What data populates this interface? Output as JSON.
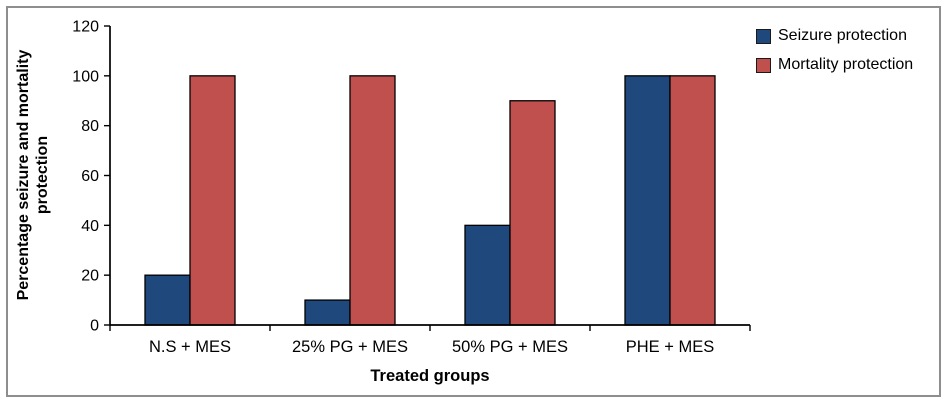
{
  "figure": {
    "background_color": "#FFFFFF",
    "border_color": "#8E8E8E"
  },
  "chart_data": {
    "type": "bar",
    "title": "",
    "xlabel": "Treated groups",
    "ylabel": "Percentage seizure and mortality protection",
    "ylabel_lines": [
      "Percentage seizure and mortality",
      "protection"
    ],
    "categories": [
      "N.S + MES",
      "25% PG + MES",
      "50% PG + MES",
      "PHE + MES"
    ],
    "series": [
      {
        "name": "Seizure protection",
        "color": "#1F497D",
        "values": [
          20,
          10,
          40,
          100
        ]
      },
      {
        "name": "Mortality protection",
        "color": "#C0504D",
        "values": [
          100,
          100,
          90,
          100
        ]
      }
    ],
    "ylim": [
      0,
      120
    ],
    "yticks": [
      0,
      20,
      40,
      60,
      80,
      100,
      120
    ],
    "grid": false,
    "legend_position": "top-right",
    "axis_color": "#000000",
    "bar_border_color": "#000000"
  }
}
